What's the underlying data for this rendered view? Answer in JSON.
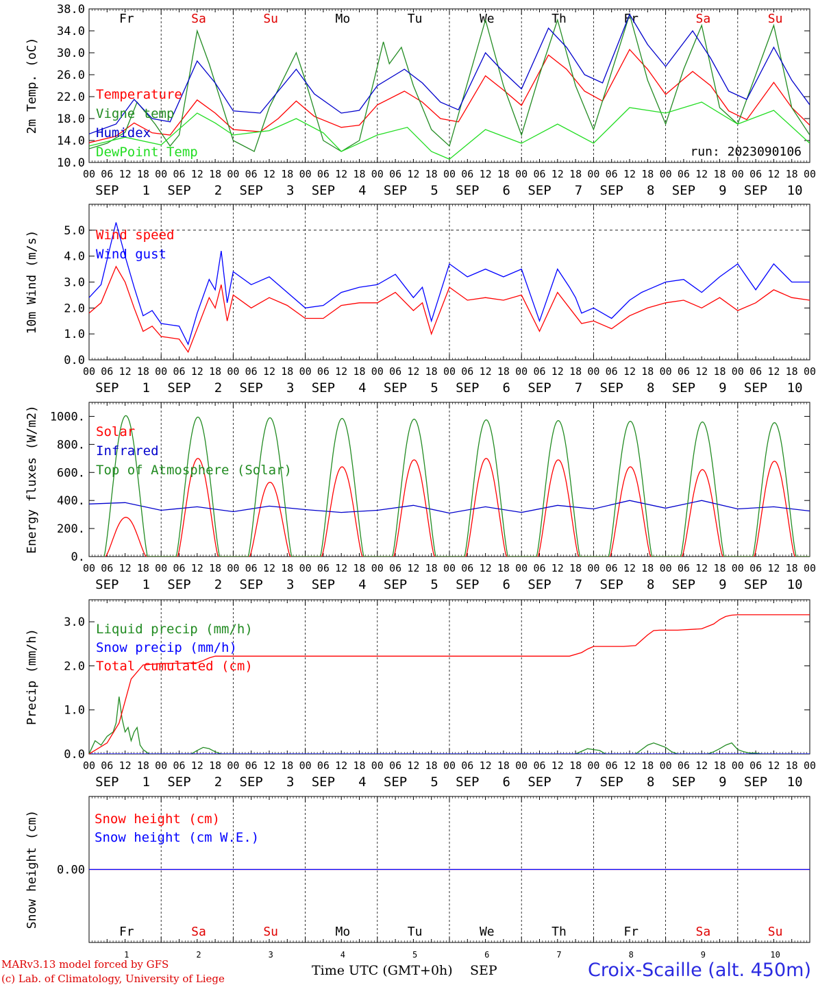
{
  "days": [
    {
      "abbr": "Fr",
      "num": "1",
      "color": "#000000"
    },
    {
      "abbr": "Sa",
      "num": "2",
      "color": "#e00000"
    },
    {
      "abbr": "Su",
      "num": "3",
      "color": "#e00000"
    },
    {
      "abbr": "Mo",
      "num": "4",
      "color": "#000000"
    },
    {
      "abbr": "Tu",
      "num": "5",
      "color": "#000000"
    },
    {
      "abbr": "We",
      "num": "6",
      "color": "#000000"
    },
    {
      "abbr": "Th",
      "num": "7",
      "color": "#000000"
    },
    {
      "abbr": "Fr",
      "num": "8",
      "color": "#000000"
    },
    {
      "abbr": "Sa",
      "num": "9",
      "color": "#e00000"
    },
    {
      "abbr": "Su",
      "num": "10",
      "color": "#e00000"
    }
  ],
  "hour_ticks": [
    "00",
    "06",
    "12",
    "18"
  ],
  "month": "SEP",
  "footer": {
    "model": "MARv3.13 model forced by GFS",
    "lab": "(c) Lab. of Climatology, University of Liege",
    "time_label": "Time UTC (GMT+0h)",
    "month_label": "SEP",
    "station": "Croix-Scaille (alt. 450m)"
  },
  "chart_data": [
    {
      "type": "line",
      "ylabel": "2m Temp. (oC)",
      "ylim": [
        10,
        38
      ],
      "yticks": [
        "10.0",
        "14.0",
        "18.0",
        "22.0",
        "26.0",
        "30.0",
        "34.0",
        "38.0"
      ],
      "ytick_values": [
        10,
        14,
        18,
        22,
        26,
        30,
        34,
        38
      ],
      "run_label": "run: 2023090106",
      "x_unit": "hours since SEP 1 00 UTC",
      "series": [
        {
          "name": "Temperature",
          "color": "#ff0000",
          "x": [
            0,
            9,
            15,
            21,
            27,
            36,
            42,
            48,
            57,
            63,
            69,
            75,
            84,
            90,
            96,
            105,
            111,
            117,
            123,
            132,
            138,
            144,
            153,
            159,
            165,
            171,
            180,
            186,
            192,
            201,
            207,
            213,
            219,
            228,
            234,
            240
          ],
          "y": [
            13.6,
            14.8,
            17.2,
            15.4,
            15.0,
            21.4,
            19.0,
            16.0,
            15.6,
            18.0,
            21.2,
            18.4,
            16.4,
            16.8,
            20.5,
            23.0,
            21.0,
            18.0,
            17.4,
            25.8,
            23.2,
            20.4,
            29.6,
            27.0,
            23.0,
            21.2,
            30.6,
            27.0,
            22.4,
            26.6,
            24.0,
            19.4,
            17.8,
            24.6,
            20.0,
            16.8
          ]
        },
        {
          "name": "Vigne temp",
          "color": "#228b22",
          "x": [
            0,
            6,
            12,
            16,
            22,
            27,
            30,
            36,
            40,
            48,
            55,
            60,
            69,
            72,
            78,
            84,
            90,
            98,
            100,
            104,
            108,
            114,
            120,
            132,
            138,
            144,
            150,
            156,
            162,
            168,
            180,
            186,
            192,
            198,
            204,
            210,
            216,
            228,
            234,
            240
          ],
          "y": [
            12.5,
            13.5,
            15.5,
            21.0,
            17.0,
            13.0,
            15.0,
            34.0,
            28.0,
            14.0,
            12.0,
            20.0,
            30.0,
            25.0,
            14.0,
            12.0,
            14.0,
            32.0,
            28.0,
            31.0,
            24.0,
            16.0,
            13.0,
            36.0,
            24.0,
            15.0,
            26.0,
            36.0,
            24.0,
            16.0,
            37.0,
            25.0,
            17.0,
            27.0,
            35.0,
            20.0,
            17.0,
            35.0,
            20.0,
            15.0
          ]
        },
        {
          "name": "Humidex",
          "color": "#0000cc",
          "x": [
            0,
            9,
            15,
            21,
            27,
            36,
            42,
            48,
            57,
            63,
            69,
            75,
            84,
            90,
            96,
            105,
            111,
            117,
            123,
            132,
            138,
            144,
            153,
            159,
            165,
            171,
            180,
            186,
            192,
            201,
            207,
            213,
            219,
            228,
            234,
            240
          ],
          "y": [
            15.2,
            17.0,
            21.5,
            18.0,
            17.4,
            28.5,
            24.5,
            19.4,
            19.0,
            23.0,
            27.0,
            22.5,
            19.0,
            19.5,
            24.0,
            27.0,
            24.5,
            21.0,
            19.6,
            30.0,
            26.5,
            23.4,
            34.5,
            31.0,
            26.0,
            24.5,
            37.0,
            31.5,
            27.5,
            34.0,
            29.0,
            23.0,
            21.5,
            31.0,
            25.0,
            20.5
          ]
        },
        {
          "name": "DewPoint Temp",
          "color": "#22dd22",
          "x": [
            0,
            12,
            24,
            36,
            42,
            48,
            60,
            69,
            78,
            84,
            96,
            106,
            114,
            120,
            132,
            144,
            156,
            168,
            180,
            192,
            204,
            216,
            228,
            240
          ],
          "y": [
            13.0,
            14.6,
            13.2,
            19.0,
            17.2,
            15.0,
            15.8,
            18.0,
            15.4,
            12.0,
            15.0,
            16.4,
            12.0,
            10.6,
            16.0,
            13.5,
            17.0,
            13.5,
            20.0,
            19.0,
            21.0,
            17.0,
            19.5,
            13.5
          ]
        }
      ]
    },
    {
      "type": "line",
      "ylabel": "10m Wind (m/s)",
      "ylim": [
        0,
        6
      ],
      "yticks": [
        "0.0",
        "1.0",
        "2.0",
        "3.0",
        "4.0",
        "5.0"
      ],
      "ytick_values": [
        0,
        1,
        2,
        3,
        4,
        5
      ],
      "x_unit": "hours since SEP 1 00 UTC",
      "series": [
        {
          "name": "Wind speed",
          "color": "#ff0000",
          "x": [
            0,
            4,
            9,
            12,
            15,
            18,
            21,
            24,
            30,
            33,
            36,
            40,
            42,
            44,
            46,
            48,
            54,
            60,
            66,
            72,
            78,
            84,
            90,
            96,
            102,
            108,
            111,
            114,
            120,
            126,
            132,
            138,
            144,
            150,
            156,
            160,
            162,
            164,
            168,
            174,
            180,
            184,
            186,
            192,
            198,
            204,
            210,
            216,
            222,
            228,
            234,
            240
          ],
          "y": [
            1.8,
            2.2,
            3.6,
            3.0,
            2.0,
            1.1,
            1.3,
            0.9,
            0.8,
            0.3,
            1.2,
            2.4,
            2.0,
            2.9,
            1.5,
            2.5,
            2.0,
            2.4,
            2.1,
            1.6,
            1.6,
            2.1,
            2.2,
            2.2,
            2.6,
            1.9,
            2.2,
            1.0,
            2.8,
            2.3,
            2.4,
            2.3,
            2.5,
            1.1,
            2.6,
            2.0,
            1.7,
            1.4,
            1.5,
            1.2,
            1.7,
            1.9,
            2.0,
            2.2,
            2.3,
            2.0,
            2.4,
            1.9,
            2.2,
            2.7,
            2.4,
            2.3
          ]
        },
        {
          "name": "Wind gust",
          "color": "#0000ff",
          "x": [
            0,
            4,
            9,
            12,
            15,
            18,
            21,
            24,
            30,
            33,
            36,
            40,
            42,
            44,
            46,
            48,
            54,
            60,
            66,
            72,
            78,
            84,
            90,
            96,
            102,
            108,
            111,
            114,
            120,
            126,
            132,
            138,
            144,
            150,
            156,
            160,
            162,
            164,
            168,
            174,
            180,
            184,
            186,
            192,
            198,
            204,
            210,
            216,
            222,
            228,
            234,
            240
          ],
          "y": [
            2.4,
            2.9,
            5.3,
            4.0,
            2.8,
            1.7,
            1.9,
            1.4,
            1.3,
            0.6,
            1.8,
            3.1,
            2.7,
            4.2,
            2.2,
            3.4,
            2.9,
            3.2,
            2.6,
            2.0,
            2.1,
            2.6,
            2.8,
            2.9,
            3.3,
            2.4,
            2.8,
            1.5,
            3.7,
            3.2,
            3.5,
            3.2,
            3.5,
            1.5,
            3.5,
            2.8,
            2.4,
            1.8,
            2.0,
            1.6,
            2.3,
            2.6,
            2.7,
            3.0,
            3.1,
            2.6,
            3.2,
            3.7,
            2.7,
            3.7,
            3.0,
            3.0
          ]
        }
      ]
    },
    {
      "type": "line",
      "ylabel": "Energy fluxes (W/m2)",
      "ylim": [
        0,
        1100
      ],
      "yticks": [
        "0.",
        "200.",
        "400.",
        "600.",
        "800.",
        "1000."
      ],
      "ytick_values": [
        0,
        200,
        400,
        600,
        800,
        1000
      ],
      "x_unit": "hours since SEP 1 00 UTC",
      "series": [
        {
          "name": "Solar",
          "color": "#ff0000",
          "type": "daily_bell",
          "sunrise_hour": 5.5,
          "sunset_hour": 19.0,
          "peaks": [
            280,
            700,
            530,
            640,
            690,
            700,
            690,
            640,
            620,
            680
          ]
        },
        {
          "name": "Infrared",
          "color": "#0000cc",
          "x": [
            0,
            12,
            24,
            36,
            48,
            60,
            72,
            84,
            96,
            108,
            120,
            132,
            144,
            156,
            168,
            180,
            192,
            204,
            216,
            228,
            240
          ],
          "y": [
            375,
            385,
            330,
            355,
            320,
            360,
            335,
            315,
            330,
            365,
            310,
            355,
            315,
            365,
            340,
            400,
            345,
            400,
            340,
            355,
            325
          ]
        },
        {
          "name": "Top of Atmosphere (Solar)",
          "color": "#228b22",
          "type": "daily_bell",
          "sunrise_hour": 5.0,
          "sunset_hour": 19.5,
          "peaks": [
            1005,
            995,
            990,
            985,
            980,
            975,
            970,
            965,
            960,
            955
          ]
        }
      ]
    },
    {
      "type": "line",
      "ylabel": "Precip (mm/h)",
      "ylim": [
        0,
        3.5
      ],
      "yticks": [
        "0.0",
        "1.0",
        "2.0",
        "3.0"
      ],
      "ytick_values": [
        0,
        1,
        2,
        3
      ],
      "x_unit": "hours since SEP 1 00 UTC",
      "series": [
        {
          "name": "Liquid precip (mm/h)",
          "color": "#228b22",
          "x": [
            0,
            2,
            4,
            6,
            8,
            9,
            10,
            11,
            12,
            13,
            14,
            15,
            16,
            17,
            18,
            19,
            20,
            22,
            24,
            34,
            36,
            38,
            40,
            42,
            44,
            162,
            164,
            166,
            168,
            170,
            172,
            182,
            184,
            186,
            188,
            190,
            192,
            194,
            196,
            206,
            208,
            210,
            212,
            214,
            216,
            218,
            220,
            222,
            224,
            240
          ],
          "y": [
            0,
            0.3,
            0.2,
            0.4,
            0.5,
            0.7,
            1.3,
            0.8,
            0.5,
            0.6,
            0.3,
            0.5,
            0.6,
            0.2,
            0.1,
            0.05,
            0,
            0,
            0,
            0,
            0.08,
            0.15,
            0.12,
            0.05,
            0,
            0,
            0.06,
            0.12,
            0.1,
            0.08,
            0,
            0,
            0.1,
            0.2,
            0.25,
            0.2,
            0.15,
            0.05,
            0,
            0,
            0.05,
            0.12,
            0.2,
            0.25,
            0.1,
            0.05,
            0.02,
            0.02,
            0,
            0
          ]
        },
        {
          "name": "Snow precip (mm/h)",
          "color": "#0000ff",
          "x": [
            0,
            240
          ],
          "y": [
            0,
            0
          ]
        },
        {
          "name": "Total cumulated (cm)",
          "color": "#ff0000",
          "x": [
            0,
            6,
            10,
            12,
            14,
            18,
            24,
            36,
            38,
            40,
            42,
            48,
            96,
            144,
            160,
            164,
            166,
            168,
            178,
            182,
            184,
            186,
            188,
            190,
            196,
            204,
            208,
            210,
            212,
            214,
            216,
            240
          ],
          "y": [
            0.0,
            0.25,
            0.7,
            1.2,
            1.7,
            2.02,
            2.05,
            2.07,
            2.12,
            2.18,
            2.22,
            2.22,
            2.22,
            2.22,
            2.22,
            2.3,
            2.38,
            2.44,
            2.44,
            2.46,
            2.58,
            2.7,
            2.8,
            2.81,
            2.81,
            2.84,
            2.95,
            3.05,
            3.12,
            3.15,
            3.16,
            3.16
          ]
        }
      ]
    },
    {
      "type": "line",
      "ylabel": "Snow height (cm)",
      "ylim": [
        -1,
        1
      ],
      "yticks": [
        "0.00"
      ],
      "ytick_values": [
        0
      ],
      "x_unit": "hours since SEP 1 00 UTC",
      "series": [
        {
          "name": "Snow height (cm)",
          "color": "#ff0000",
          "x": [
            0,
            240
          ],
          "y": [
            0,
            0
          ]
        },
        {
          "name": "Snow height (cm W.E.)",
          "color": "#0000ff",
          "x": [
            0,
            240
          ],
          "y": [
            0,
            0
          ]
        }
      ]
    }
  ]
}
